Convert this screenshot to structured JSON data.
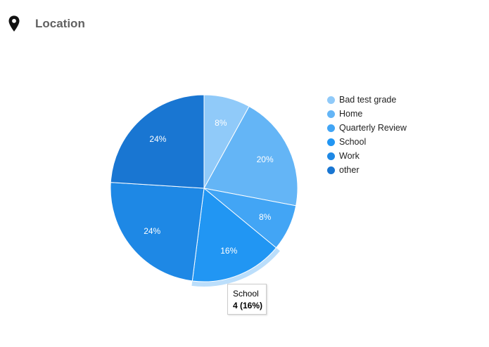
{
  "header": {
    "title": "Location",
    "icon": "map-pin-icon"
  },
  "tooltip": {
    "label": "School",
    "value": "4 (16%)"
  },
  "legend": [
    {
      "label": "Bad test grade",
      "color": "#90CAF9"
    },
    {
      "label": "Home",
      "color": "#64B5F6"
    },
    {
      "label": "Quarterly Review",
      "color": "#42A5F5"
    },
    {
      "label": "School",
      "color": "#2196F3"
    },
    {
      "label": "Work",
      "color": "#1E88E5"
    },
    {
      "label": "other",
      "color": "#1976D2"
    }
  ],
  "chart_data": {
    "type": "pie",
    "title": "Location",
    "categories": [
      "Bad test grade",
      "Home",
      "Quarterly Review",
      "School",
      "Work",
      "other"
    ],
    "values": [
      2,
      5,
      2,
      4,
      6,
      6
    ],
    "percentages": [
      8,
      20,
      8,
      16,
      24,
      24
    ],
    "colors": [
      "#90CAF9",
      "#64B5F6",
      "#42A5F5",
      "#2196F3",
      "#1E88E5",
      "#1976D2"
    ],
    "legend_position": "right",
    "highlighted": "School"
  }
}
